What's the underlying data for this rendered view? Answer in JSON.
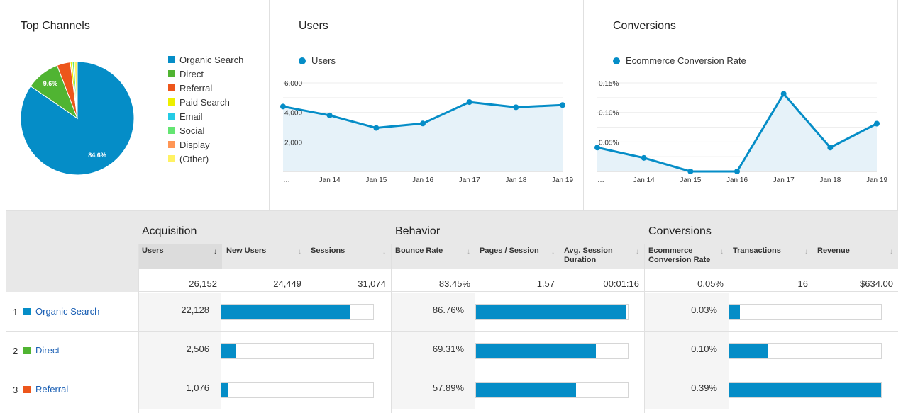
{
  "top_channels": {
    "title": "Top Channels",
    "legend": [
      {
        "label": "Organic Search",
        "color": "#058dc7"
      },
      {
        "label": "Direct",
        "color": "#50b432"
      },
      {
        "label": "Referral",
        "color": "#ed561b"
      },
      {
        "label": "Paid Search",
        "color": "#edef00"
      },
      {
        "label": "Email",
        "color": "#24cbe5"
      },
      {
        "label": "Social",
        "color": "#64e572"
      },
      {
        "label": "Display",
        "color": "#ff9655"
      },
      {
        "label": "(Other)",
        "color": "#fff263"
      }
    ],
    "pie_labels": {
      "organic": "84.6%",
      "direct": "9.6%"
    }
  },
  "users_panel": {
    "title": "Users",
    "series_label": "Users",
    "ytick_labels": [
      "6,000",
      "4,000",
      "2,000"
    ],
    "xtick_labels": [
      "…",
      "Jan 14",
      "Jan 15",
      "Jan 16",
      "Jan 17",
      "Jan 18",
      "Jan 19"
    ]
  },
  "conversions_panel": {
    "title": "Conversions",
    "series_label": "Ecommerce Conversion Rate",
    "ytick_labels": [
      "0.15%",
      "0.10%",
      "0.05%"
    ],
    "xtick_labels": [
      "…",
      "Jan 14",
      "Jan 15",
      "Jan 16",
      "Jan 17",
      "Jan 18",
      "Jan 19"
    ]
  },
  "chart_data": [
    {
      "type": "pie",
      "title": "Top Channels",
      "categories": [
        "Organic Search",
        "Direct",
        "Referral",
        "Paid Search",
        "Email",
        "Social",
        "Display",
        "(Other)"
      ],
      "values": [
        84.6,
        9.6,
        3.8,
        0.6,
        0.0,
        0.6,
        0.0,
        0.8
      ],
      "colors": [
        "#058dc7",
        "#50b432",
        "#ed561b",
        "#edef00",
        "#24cbe5",
        "#64e572",
        "#ff9655",
        "#fff263"
      ],
      "legend": "right"
    },
    {
      "type": "area",
      "title": "Users",
      "x": [
        "…",
        "Jan 14",
        "Jan 15",
        "Jan 16",
        "Jan 17",
        "Jan 18",
        "Jan 19"
      ],
      "series": [
        {
          "name": "Users",
          "values": [
            4400,
            3800,
            2950,
            3250,
            4700,
            4350,
            4500
          ]
        }
      ],
      "ylim": [
        0,
        6000
      ],
      "grid": true,
      "color": "#058dc7"
    },
    {
      "type": "area",
      "title": "Conversions",
      "x": [
        "…",
        "Jan 14",
        "Jan 15",
        "Jan 16",
        "Jan 17",
        "Jan 18",
        "Jan 19"
      ],
      "series": [
        {
          "name": "Ecommerce Conversion Rate",
          "values": [
            0.0405,
            0.023,
            0.0,
            0.0,
            0.1315,
            0.0405,
            0.081
          ]
        }
      ],
      "ylim": [
        0,
        0.15
      ],
      "grid": true,
      "color": "#058dc7"
    }
  ],
  "table": {
    "groups": {
      "acquisition": "Acquisition",
      "behavior": "Behavior",
      "conversions": "Conversions"
    },
    "columns": {
      "users": "Users",
      "new_users": "New Users",
      "sessions": "Sessions",
      "bounce_rate": "Bounce Rate",
      "pages_session": "Pages / Session",
      "avg_session": "Avg. Session Duration",
      "ecr": "Ecommerce Conversion Rate",
      "transactions": "Transactions",
      "revenue": "Revenue"
    },
    "sort_arrow": "↓",
    "sort_arrow_inactive": "↓",
    "totals": {
      "users": "26,152",
      "new_users": "24,449",
      "sessions": "31,074",
      "bounce_rate": "83.45%",
      "pages_session": "1.57",
      "avg_session": "00:01:16",
      "ecr": "0.05%",
      "transactions": "16",
      "revenue": "$634.00"
    },
    "rows": [
      {
        "num": "1",
        "name": "Organic Search",
        "color": "#058dc7",
        "users": "22,128",
        "users_frac": 0.846,
        "bounce": "86.76%",
        "bounce_frac": 0.99,
        "ecr": "0.03%",
        "ecr_frac": 0.07
      },
      {
        "num": "2",
        "name": "Direct",
        "color": "#50b432",
        "users": "2,506",
        "users_frac": 0.096,
        "bounce": "69.31%",
        "bounce_frac": 0.79,
        "ecr": "0.10%",
        "ecr_frac": 0.25
      },
      {
        "num": "3",
        "name": "Referral",
        "color": "#ed561b",
        "users": "1,076",
        "users_frac": 0.041,
        "bounce": "57.89%",
        "bounce_frac": 0.66,
        "ecr": "0.39%",
        "ecr_frac": 1.0
      }
    ]
  }
}
